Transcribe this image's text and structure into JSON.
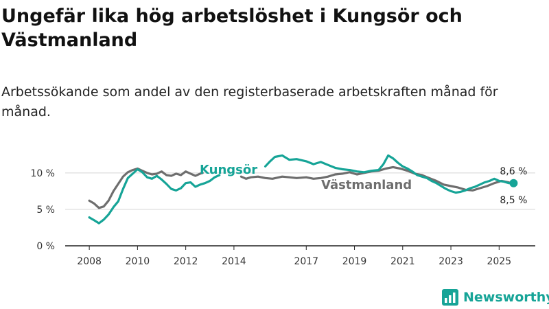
{
  "title": "Ungefär lika hög arbetslöshet i Kungsör och Västmanland",
  "subtitle": "Arbetssökande som andel av den registerbaserade arbetskraften månad för månad.",
  "brand": {
    "name": "Newsworthy",
    "color": "#16a497",
    "icon": "bar-chart-logo-icon"
  },
  "chart_data": {
    "type": "line",
    "ylim": [
      0,
      13
    ],
    "yticks": [
      0,
      5,
      10
    ],
    "ytick_labels": [
      "0 %",
      "5 %",
      "10 %"
    ],
    "xticks": [
      2008,
      2010,
      2012,
      2014,
      2017,
      2019,
      2021,
      2023,
      2025
    ],
    "xtick_labels": [
      "2008",
      "2010",
      "2012",
      "2014",
      "2017",
      "2019",
      "2021",
      "2023",
      "2025"
    ],
    "series": [
      {
        "name": "Västmanland",
        "color": "#6e6e6e",
        "label": "Västmanland",
        "end_label": "8,5 %",
        "x": [
          2008.0,
          2008.2,
          2008.4,
          2008.6,
          2008.8,
          2009.0,
          2009.2,
          2009.4,
          2009.6,
          2009.8,
          2010.0,
          2010.2,
          2010.4,
          2010.6,
          2010.8,
          2011.0,
          2011.2,
          2011.4,
          2011.6,
          2011.8,
          2012.0,
          2012.2,
          2012.4,
          2012.6,
          2012.7,
          2014.3,
          2014.5,
          2014.7,
          2015.0,
          2015.3,
          2015.6,
          2016.0,
          2016.3,
          2016.6,
          2017.0,
          2017.3,
          2017.6,
          2017.9,
          2018.2,
          2018.5,
          2018.8,
          2019.1,
          2019.4,
          2019.7,
          2020.0,
          2020.3,
          2020.6,
          2020.9,
          2021.2,
          2021.5,
          2021.8,
          2022.1,
          2022.4,
          2022.7,
          2023.0,
          2023.3,
          2023.6,
          2023.9,
          2024.2,
          2024.5,
          2024.8,
          2025.1,
          2025.4,
          2025.6
        ],
        "y": [
          6.2,
          5.8,
          5.2,
          5.4,
          6.2,
          7.5,
          8.5,
          9.5,
          10.1,
          10.4,
          10.6,
          10.3,
          10.0,
          9.8,
          9.9,
          10.2,
          9.7,
          9.6,
          9.9,
          9.7,
          10.2,
          9.9,
          9.6,
          9.9,
          10.0,
          9.5,
          9.2,
          9.4,
          9.5,
          9.3,
          9.2,
          9.5,
          9.4,
          9.3,
          9.4,
          9.2,
          9.3,
          9.5,
          9.8,
          9.9,
          10.1,
          9.8,
          10.0,
          10.2,
          10.3,
          10.6,
          10.8,
          10.6,
          10.3,
          9.9,
          9.7,
          9.3,
          8.9,
          8.4,
          8.2,
          8.0,
          7.7,
          7.6,
          7.9,
          8.2,
          8.6,
          8.9,
          8.7,
          8.5
        ]
      },
      {
        "name": "Kungsör",
        "color": "#16a497",
        "label": "Kungsör",
        "end_label": "8,6 %",
        "x": [
          2008.0,
          2008.2,
          2008.4,
          2008.6,
          2008.8,
          2009.0,
          2009.2,
          2009.4,
          2009.6,
          2009.8,
          2010.0,
          2010.2,
          2010.4,
          2010.6,
          2010.8,
          2011.0,
          2011.2,
          2011.4,
          2011.6,
          2011.8,
          2012.0,
          2012.2,
          2012.4,
          2012.6,
          2012.8,
          2013.0,
          2013.2,
          2013.4,
          2015.3,
          2015.5,
          2015.7,
          2016.0,
          2016.3,
          2016.6,
          2017.0,
          2017.3,
          2017.6,
          2017.9,
          2018.2,
          2018.5,
          2018.8,
          2019.1,
          2019.4,
          2019.7,
          2020.0,
          2020.2,
          2020.4,
          2020.6,
          2020.8,
          2021.0,
          2021.2,
          2021.4,
          2021.6,
          2021.8,
          2022.0,
          2022.2,
          2022.4,
          2022.6,
          2022.8,
          2023.0,
          2023.2,
          2023.4,
          2023.6,
          2023.8,
          2024.0,
          2024.2,
          2024.4,
          2024.6,
          2024.8,
          2025.0,
          2025.2,
          2025.4,
          2025.6
        ],
        "y": [
          3.9,
          3.5,
          3.1,
          3.6,
          4.3,
          5.3,
          6.1,
          7.8,
          9.3,
          9.9,
          10.5,
          10.1,
          9.4,
          9.2,
          9.6,
          9.1,
          8.5,
          7.8,
          7.6,
          7.9,
          8.6,
          8.7,
          8.1,
          8.4,
          8.6,
          8.9,
          9.4,
          9.7,
          10.9,
          11.6,
          12.2,
          12.4,
          11.8,
          11.9,
          11.6,
          11.2,
          11.5,
          11.1,
          10.7,
          10.5,
          10.4,
          10.2,
          10.1,
          10.3,
          10.4,
          11.2,
          12.4,
          12.0,
          11.4,
          10.9,
          10.6,
          10.2,
          9.7,
          9.5,
          9.3,
          8.9,
          8.6,
          8.2,
          7.8,
          7.5,
          7.3,
          7.4,
          7.6,
          7.9,
          8.1,
          8.4,
          8.7,
          8.9,
          9.2,
          8.9,
          8.8,
          8.6,
          8.6
        ]
      }
    ]
  }
}
